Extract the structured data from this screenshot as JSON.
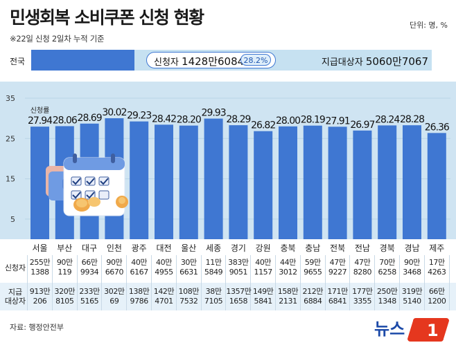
{
  "title": "민생회복 소비쿠폰 신청 현황",
  "unit": "단위: 명, %",
  "note": "※22일 신청 2일차 누적 기준",
  "national": {
    "label": "전국",
    "applicants_label": "신청자",
    "applicants_value": "1428만6084",
    "rate_label": "28.2%",
    "rate": 28.2,
    "target_label": "지급대상자",
    "target_value": "5060만7067"
  },
  "chart_data": {
    "type": "bar",
    "series_label": "신청률",
    "categories": [
      "서울",
      "부산",
      "대구",
      "인천",
      "광주",
      "대전",
      "울산",
      "세종",
      "경기",
      "강원",
      "충북",
      "충남",
      "전북",
      "전남",
      "경북",
      "경남",
      "제주"
    ],
    "values": [
      27.94,
      28.06,
      28.69,
      30.02,
      29.23,
      28.42,
      28.2,
      29.93,
      28.29,
      26.82,
      28.0,
      28.19,
      27.91,
      26.97,
      28.24,
      28.28,
      26.36
    ],
    "value_labels": [
      "27.94",
      "28.06",
      "28.69",
      "30.02",
      "29.23",
      "28.42",
      "28.20",
      "29.93",
      "28.29",
      "26.82",
      "28.00",
      "28.19",
      "27.91",
      "26.97",
      "28.24",
      "28.28",
      "26.36"
    ],
    "yticks": [
      "35",
      "25",
      "15",
      "5"
    ],
    "ylim": [
      0,
      35
    ],
    "colors": {
      "bar": "#3f77d2",
      "background": "#cfe4f2"
    }
  },
  "table": {
    "row1_label": "신청자",
    "row2_label_line1": "지급",
    "row2_label_line2": "대상자",
    "applicants": [
      [
        "255만",
        "1388"
      ],
      [
        "90만",
        "119"
      ],
      [
        "66만",
        "9934"
      ],
      [
        "90만",
        "6670"
      ],
      [
        "40만",
        "6167"
      ],
      [
        "40만",
        "4955"
      ],
      [
        "30만",
        "6631"
      ],
      [
        "11만",
        "5849"
      ],
      [
        "383만",
        "9051"
      ],
      [
        "40만",
        "1157"
      ],
      [
        "44만",
        "3012"
      ],
      [
        "59만",
        "9655"
      ],
      [
        "47만",
        "9227"
      ],
      [
        "47만",
        "8280"
      ],
      [
        "70만",
        "6258"
      ],
      [
        "90만",
        "3468"
      ],
      [
        "17만",
        "4263"
      ]
    ],
    "targets": [
      [
        "913만",
        "206"
      ],
      [
        "320만",
        "8105"
      ],
      [
        "233만",
        "5165"
      ],
      [
        "302만",
        "69"
      ],
      [
        "138만",
        "9786"
      ],
      [
        "142만",
        "4701"
      ],
      [
        "108만",
        "7532"
      ],
      [
        "38만",
        "7105"
      ],
      [
        "1357만",
        "1658"
      ],
      [
        "149만",
        "5841"
      ],
      [
        "158만",
        "2131"
      ],
      [
        "212만",
        "6884"
      ],
      [
        "171만",
        "6841"
      ],
      [
        "177만",
        "3355"
      ],
      [
        "250만",
        "1348"
      ],
      [
        "319만",
        "5140"
      ],
      [
        "66만",
        "1200"
      ]
    ]
  },
  "source": "자료: 행정안전부",
  "logo_text": "뉴스",
  "logo_number": "1"
}
